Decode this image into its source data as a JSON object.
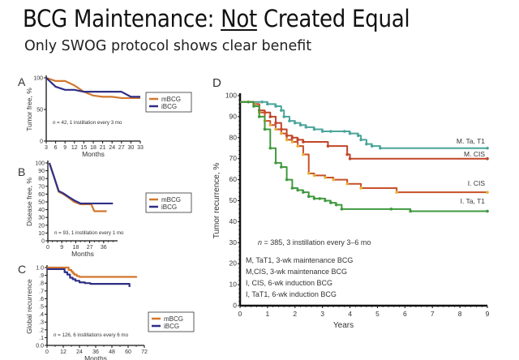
{
  "slide": {
    "title_pre": "BCG Maintenance: ",
    "title_underlined": "Not",
    "title_post": " Created Equal",
    "subtitle": "Only SWOG protocol shows clear benefit"
  },
  "colors": {
    "mBCG": "#d2782e",
    "iBCG": "#2f2f86",
    "M_TaT1": "#4aa59a",
    "M_CIS": "#c0452a",
    "I_CIS": "#c8502a",
    "I_CIS_marker": "#e8b030",
    "I_TaT1": "#3f9a3f"
  },
  "chart_data": [
    {
      "panel": "A",
      "type": "line",
      "xlabel": "Months",
      "ylabel": "Tumor free, %",
      "xlim": [
        3,
        33
      ],
      "ylim": [
        0,
        100
      ],
      "xticks": [
        "3",
        "6",
        "9",
        "12",
        "15",
        "18",
        "21",
        "24",
        "27",
        "30",
        "33"
      ],
      "yticks": [
        "0",
        "50",
        "100"
      ],
      "annotation": "n = 42, 1 instillation every 3 mo",
      "legend": [
        "mBCG",
        "iBCG"
      ],
      "legend_position": "right",
      "series": [
        {
          "name": "mBCG",
          "x": [
            3,
            6,
            9,
            12,
            15,
            18,
            21,
            24,
            27,
            30,
            33
          ],
          "y": [
            100,
            95,
            95,
            88,
            78,
            72,
            70,
            70,
            68,
            68,
            68
          ]
        },
        {
          "name": "iBCG",
          "x": [
            3,
            6,
            9,
            12,
            15,
            18,
            21,
            24,
            27,
            30,
            33
          ],
          "y": [
            100,
            86,
            81,
            81,
            78,
            78,
            78,
            78,
            78,
            70,
            70
          ]
        }
      ]
    },
    {
      "panel": "B",
      "type": "line",
      "xlabel": "Months",
      "ylabel": "Disease free, %",
      "xlim": [
        0,
        45
      ],
      "ylim": [
        0,
        100
      ],
      "xticks": [
        "0",
        "9",
        "18",
        "27",
        "36"
      ],
      "yticks": [
        "0",
        "10",
        "20",
        "30",
        "40",
        "50",
        "60",
        "70",
        "80",
        "90",
        "100"
      ],
      "annotation": "n = 93, 1 instillation every 1 mo",
      "legend": [
        "mBCG",
        "iBCG"
      ],
      "legend_position": "right",
      "series": [
        {
          "name": "mBCG",
          "x": [
            1,
            4,
            7,
            10,
            13,
            17,
            21,
            24,
            28,
            30,
            33,
            38
          ],
          "y": [
            100,
            82,
            63,
            60,
            56,
            50,
            47,
            47,
            47,
            38,
            38,
            38
          ]
        },
        {
          "name": "iBCG",
          "x": [
            1,
            4,
            7,
            10,
            13,
            17,
            21,
            24,
            28,
            30,
            33,
            42
          ],
          "y": [
            100,
            82,
            64,
            61,
            57,
            52,
            48,
            48,
            48,
            48,
            48,
            48
          ]
        }
      ]
    },
    {
      "panel": "C",
      "type": "line",
      "xlabel": "Months",
      "ylabel": "Global recurrence",
      "xlim": [
        0,
        72
      ],
      "ylim": [
        0,
        1.0
      ],
      "xticks": [
        "0",
        "12",
        "24",
        "36",
        "48",
        "60",
        "72"
      ],
      "yticks": [
        "0.0",
        ".1",
        ".2",
        ".3",
        ".4",
        ".5",
        ".6",
        ".7",
        ".8",
        ".9",
        "1.0"
      ],
      "annotation": "n = 126, 6 instillations every 6 mo",
      "legend": [
        "mBCG",
        "iBCG"
      ],
      "legend_position": "right",
      "series": [
        {
          "name": "mBCG",
          "x": [
            0,
            15,
            16,
            18,
            19,
            20,
            22,
            24,
            40,
            66
          ],
          "y": [
            1.0,
            1.0,
            0.97,
            0.95,
            0.93,
            0.91,
            0.89,
            0.88,
            0.88,
            0.87
          ]
        },
        {
          "name": "iBCG",
          "x": [
            0,
            11,
            13,
            15,
            17,
            19,
            21,
            24,
            28,
            32,
            58,
            61
          ],
          "y": [
            0.98,
            0.98,
            0.94,
            0.91,
            0.87,
            0.85,
            0.83,
            0.81,
            0.8,
            0.79,
            0.79,
            0.75
          ]
        }
      ]
    },
    {
      "panel": "D",
      "type": "line",
      "xlabel": "Years",
      "ylabel": "Tumor recurrence, %",
      "xlim": [
        0,
        9
      ],
      "ylim": [
        0,
        100
      ],
      "xticks": [
        "0",
        "1",
        "2",
        "3",
        "4",
        "5",
        "6",
        "7",
        "8",
        "9"
      ],
      "yticks": [
        "0",
        "10",
        "20",
        "30",
        "40",
        "50",
        "60",
        "70",
        "80",
        "90",
        "100"
      ],
      "annotation": "n = 385, 3 instillation every 3–6 mo",
      "legend_notes": [
        "M, TaT1, 3-wk maintenance BCG",
        "M,CIS, 3-wk maintenance BCG",
        "I, CIS, 6-wk induction BCG",
        "I, TaT1, 6-wk induction BCG"
      ],
      "series": [
        {
          "name": "M. Ta, T1",
          "key": "M_TaT1",
          "x": [
            0,
            0.8,
            1.0,
            1.3,
            1.5,
            1.6,
            1.8,
            2.0,
            2.2,
            2.4,
            2.7,
            3.0,
            3.3,
            3.8,
            4.0,
            4.3,
            4.4,
            4.6,
            4.8,
            5.1,
            9.0
          ],
          "y": [
            97,
            97,
            96,
            95,
            93,
            90,
            88,
            87,
            86,
            85,
            84,
            83,
            83,
            83,
            82,
            81,
            79,
            77,
            76,
            75,
            75
          ]
        },
        {
          "name": "M. CIS",
          "key": "M_CIS",
          "x": [
            0,
            0.5,
            0.7,
            0.9,
            1.1,
            1.3,
            1.5,
            1.7,
            1.9,
            2.1,
            2.3,
            3.2,
            3.9,
            4.0,
            9.0
          ],
          "y": [
            97,
            96,
            93,
            92,
            90,
            87,
            84,
            81,
            80,
            79,
            78,
            76,
            72,
            70,
            70
          ]
        },
        {
          "name": "I. CIS",
          "key": "I_CIS",
          "x": [
            0,
            0.5,
            0.7,
            0.9,
            1.1,
            1.3,
            1.5,
            1.7,
            1.9,
            2.1,
            2.3,
            2.5,
            2.7,
            3.1,
            3.4,
            3.9,
            4.4,
            5.7,
            9.0
          ],
          "y": [
            97,
            96,
            92,
            88,
            86,
            84,
            82,
            79,
            78,
            76,
            72,
            63,
            62,
            61,
            60,
            58,
            56,
            54,
            54
          ]
        },
        {
          "name": "I. Ta, T1",
          "key": "I_TaT1",
          "x": [
            0,
            0.3,
            0.5,
            0.7,
            0.9,
            1.1,
            1.3,
            1.5,
            1.7,
            1.9,
            2.1,
            2.3,
            2.5,
            2.7,
            2.9,
            3.1,
            3.3,
            3.5,
            3.7,
            5.5,
            6.2,
            9.0
          ],
          "y": [
            97,
            97,
            95,
            90,
            84,
            75,
            68,
            66,
            60,
            56,
            55,
            54,
            52,
            51,
            51,
            50,
            49,
            48,
            46,
            46,
            45,
            45
          ]
        }
      ]
    }
  ]
}
